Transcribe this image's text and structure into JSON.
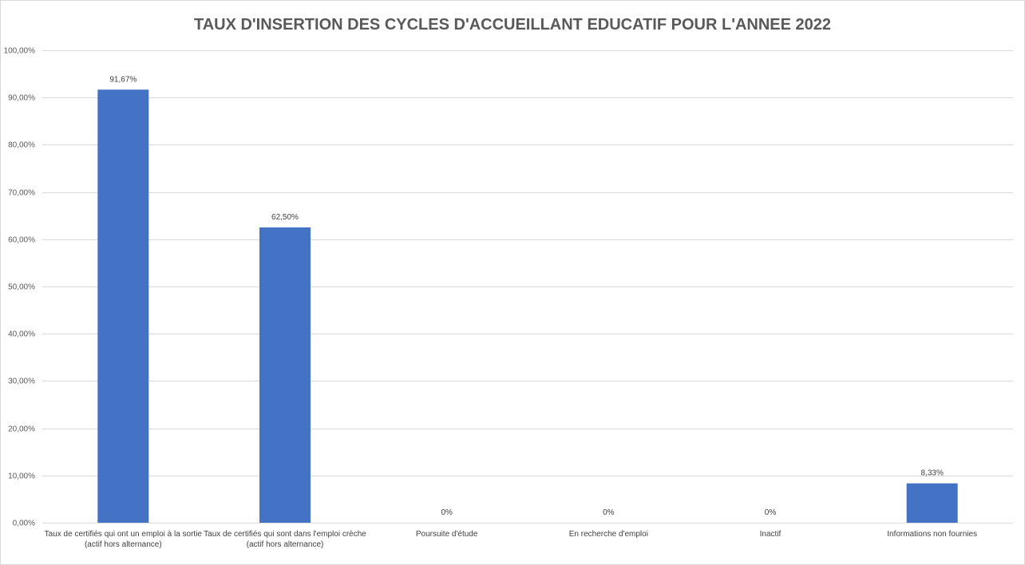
{
  "chart_data": {
    "type": "bar",
    "title": "TAUX D'INSERTION DES CYCLES D'ACCUEILLANT EDUCATIF POUR L'ANNEE 2022",
    "categories": [
      "Taux de certifiés qui ont un emploi à la sortie (actif hors alternance)",
      "Taux de certifiés qui sont dans l'emploi crèche (actif hors alternance)",
      "Poursuite d'étude",
      "En recherche d'emploi",
      "Inactif",
      "Informations non fournies"
    ],
    "values": [
      91.67,
      62.5,
      0,
      0,
      0,
      8.33
    ],
    "data_labels": [
      "91,67%",
      "62,50%",
      "0%",
      "0%",
      "0%",
      "8,33%"
    ],
    "ylim": [
      0,
      100
    ],
    "yticks": [
      "0,00%",
      "10,00%",
      "20,00%",
      "30,00%",
      "40,00%",
      "50,00%",
      "60,00%",
      "70,00%",
      "80,00%",
      "90,00%",
      "100,00%"
    ],
    "grid": true,
    "legend": "none",
    "bar_color": "#4472c4",
    "grid_color": "#d9d9d9",
    "text_color": "#595959"
  }
}
